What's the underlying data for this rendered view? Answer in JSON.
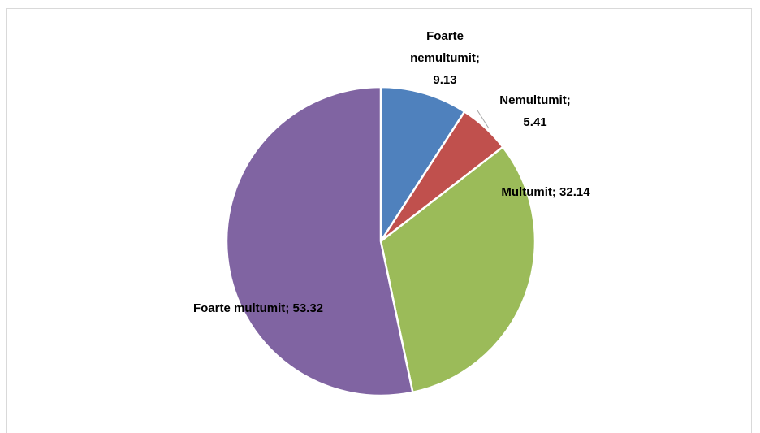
{
  "chart_data": {
    "type": "pie",
    "categories": [
      "Foarte nemultumit",
      "Nemultumit",
      "Multumit",
      "Foarte multumit"
    ],
    "values": [
      9.13,
      5.41,
      32.14,
      53.32
    ],
    "colors": [
      "#4f81bd",
      "#c0504d",
      "#9bbb59",
      "#8064a2"
    ],
    "label_separator": ";"
  }
}
